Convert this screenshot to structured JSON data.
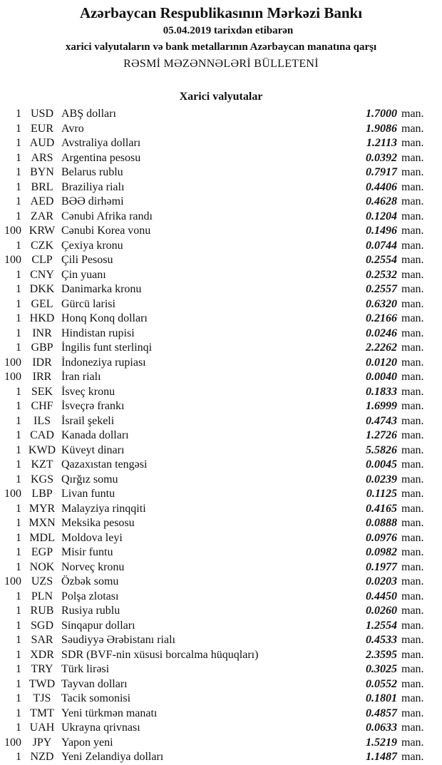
{
  "header": {
    "title": "Azərbaycan Respublikasının Mərkəzi Bankı",
    "date_line": "05.04.2019  tarixdən etibarən",
    "subtitle": "xarici valyutaların və bank metallarının Azərbaycan manatına qarşı",
    "bulletin": "RƏSMİ MƏZƏNNƏLƏRİ BÜLLETENİ"
  },
  "section_title": "Xarici valyutalar",
  "unit": "man.",
  "rates": [
    {
      "amount": "1",
      "code": "USD",
      "name": "ABŞ dolları",
      "value": "1.7000"
    },
    {
      "amount": "1",
      "code": "EUR",
      "name": "Avro",
      "value": "1.9086"
    },
    {
      "amount": "1",
      "code": "AUD",
      "name": "Avstraliya dolları",
      "value": "1.2113"
    },
    {
      "amount": "1",
      "code": "ARS",
      "name": "Argentina pesosu",
      "value": "0.0392"
    },
    {
      "amount": "1",
      "code": "BYN",
      "name": "Belarus rublu",
      "value": "0.7917"
    },
    {
      "amount": "1",
      "code": "BRL",
      "name": "Braziliya rialı",
      "value": "0.4406"
    },
    {
      "amount": "1",
      "code": "AED",
      "name": "BƏƏ dirhəmi",
      "value": "0.4628"
    },
    {
      "amount": "1",
      "code": "ZAR",
      "name": "Cənubi Afrika randı",
      "value": "0.1204"
    },
    {
      "amount": "100",
      "code": "KRW",
      "name": "Cənubi Korea vonu",
      "value": "0.1496"
    },
    {
      "amount": "1",
      "code": "CZK",
      "name": "Çexiya kronu",
      "value": "0.0744"
    },
    {
      "amount": "100",
      "code": "CLP",
      "name": "Çili Pesosu",
      "value": "0.2554"
    },
    {
      "amount": "1",
      "code": "CNY",
      "name": "Çin yuanı",
      "value": "0.2532"
    },
    {
      "amount": "1",
      "code": "DKK",
      "name": "Danimarka kronu",
      "value": "0.2557"
    },
    {
      "amount": "1",
      "code": "GEL",
      "name": "Gürcü larisi",
      "value": "0.6320"
    },
    {
      "amount": "1",
      "code": "HKD",
      "name": "Honq Konq dolları",
      "value": "0.2166"
    },
    {
      "amount": "1",
      "code": "INR",
      "name": "Hindistan rupisi",
      "value": "0.0246"
    },
    {
      "amount": "1",
      "code": "GBP",
      "name": "İngilis funt sterlinqi",
      "value": "2.2262"
    },
    {
      "amount": "100",
      "code": "IDR",
      "name": "İndoneziya rupiası",
      "value": "0.0120"
    },
    {
      "amount": "100",
      "code": "IRR",
      "name": "İran rialı",
      "value": "0.0040"
    },
    {
      "amount": "1",
      "code": "SEK",
      "name": "İsveç kronu",
      "value": "0.1833"
    },
    {
      "amount": "1",
      "code": "CHF",
      "name": "İsveçrə frankı",
      "value": "1.6999"
    },
    {
      "amount": "1",
      "code": "ILS",
      "name": "İsrail şekeli",
      "value": "0.4743"
    },
    {
      "amount": "1",
      "code": "CAD",
      "name": "Kanada dolları",
      "value": "1.2726"
    },
    {
      "amount": "1",
      "code": "KWD",
      "name": "Küveyt dinarı",
      "value": "5.5826"
    },
    {
      "amount": "1",
      "code": "KZT",
      "name": "Qazaxıstan tengəsi",
      "value": "0.0045"
    },
    {
      "amount": "1",
      "code": "KGS",
      "name": "Qırğız somu",
      "value": "0.0239"
    },
    {
      "amount": "100",
      "code": "LBP",
      "name": "Livan funtu",
      "value": "0.1125"
    },
    {
      "amount": "1",
      "code": "MYR",
      "name": "Malayziya rinqqiti",
      "value": "0.4165"
    },
    {
      "amount": "1",
      "code": "MXN",
      "name": "Meksika pesosu",
      "value": "0.0888"
    },
    {
      "amount": "1",
      "code": "MDL",
      "name": "Moldova leyi",
      "value": "0.0976"
    },
    {
      "amount": "1",
      "code": "EGP",
      "name": "Misir funtu",
      "value": "0.0982"
    },
    {
      "amount": "1",
      "code": "NOK",
      "name": "Norveç kronu",
      "value": "0.1977"
    },
    {
      "amount": "100",
      "code": "UZS",
      "name": "Özbək somu",
      "value": "0.0203"
    },
    {
      "amount": "1",
      "code": "PLN",
      "name": "Polşa zlotası",
      "value": "0.4450"
    },
    {
      "amount": "1",
      "code": "RUB",
      "name": "Rusiya rublu",
      "value": "0.0260"
    },
    {
      "amount": "1",
      "code": "SGD",
      "name": "Sinqapur dolları",
      "value": "1.2554"
    },
    {
      "amount": "1",
      "code": "SAR",
      "name": "Səudiyyə Ərəbistanı rialı",
      "value": "0.4533"
    },
    {
      "amount": "1",
      "code": "XDR",
      "name": "SDR (BVF-nin xüsusi borcalma hüquqları)",
      "value": "2.3595"
    },
    {
      "amount": "1",
      "code": "TRY",
      "name": "Türk lirəsi",
      "value": "0.3025"
    },
    {
      "amount": "1",
      "code": "TWD",
      "name": "Tayvan dolları",
      "value": "0.0552"
    },
    {
      "amount": "1",
      "code": "TJS",
      "name": "Tacik somonisi",
      "value": "0.1801"
    },
    {
      "amount": "1",
      "code": "TMT",
      "name": "Yeni türkmən manatı",
      "value": "0.4857"
    },
    {
      "amount": "1",
      "code": "UAH",
      "name": "Ukrayna qrivnası",
      "value": "0.0633"
    },
    {
      "amount": "100",
      "code": "JPY",
      "name": "Yapon yeni",
      "value": "1.5219"
    },
    {
      "amount": "1",
      "code": "NZD",
      "name": "Yeni Zelandiya dolları",
      "value": "1.1487"
    }
  ]
}
